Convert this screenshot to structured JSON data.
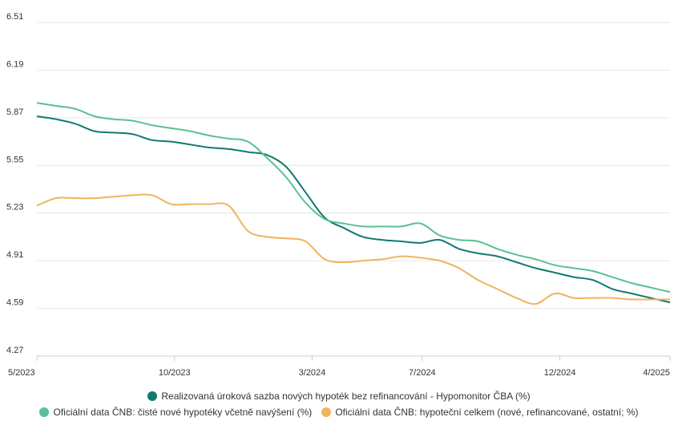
{
  "chart_data": {
    "type": "line",
    "title": "",
    "xlabel": "",
    "ylabel": "",
    "ylim": [
      4.27,
      6.51
    ],
    "y_ticks": [
      "6.51",
      "6.19",
      "5.87",
      "5.55",
      "5.23",
      "4.91",
      "4.59",
      "4.27"
    ],
    "x_ticks": [
      "5/2023",
      "10/2023",
      "3/2024",
      "7/2024",
      "12/2024",
      "4/2025"
    ],
    "grid": true,
    "legend_position": "bottom",
    "x_start": "5/2023",
    "x_end": "4/2025",
    "series": [
      {
        "name": "Realizovaná úroková sazba nových hypoték bez refinancování - Hypomonitor ČBA (%)",
        "color": "#117a6f",
        "values": [
          5.88,
          5.86,
          5.83,
          5.78,
          5.77,
          5.76,
          5.72,
          5.71,
          5.69,
          5.67,
          5.66,
          5.64,
          5.62,
          5.54,
          5.37,
          5.2,
          5.13,
          5.07,
          5.05,
          5.04,
          5.03,
          5.05,
          4.99,
          4.96,
          4.94,
          4.9,
          4.86,
          4.83,
          4.8,
          4.78,
          4.72,
          4.69,
          4.66,
          4.63
        ]
      },
      {
        "name": "Oficiální data ČNB: čisté nové hypotéky včetně navýšení (%)",
        "color": "#5bbf97",
        "values": [
          5.97,
          5.95,
          5.93,
          5.88,
          5.86,
          5.85,
          5.82,
          5.8,
          5.78,
          5.75,
          5.73,
          5.71,
          5.6,
          5.47,
          5.3,
          5.19,
          5.16,
          5.14,
          5.14,
          5.14,
          5.16,
          5.08,
          5.05,
          5.04,
          4.99,
          4.95,
          4.92,
          4.88,
          4.86,
          4.84,
          4.8,
          4.76,
          4.73,
          4.7
        ]
      },
      {
        "name": "Oficiální data ČNB: hypoteční celkem (nové, refinancované, ostatní; %)",
        "color": "#f0b45e",
        "values": [
          5.28,
          5.33,
          5.33,
          5.33,
          5.34,
          5.35,
          5.35,
          5.29,
          5.29,
          5.29,
          5.28,
          5.11,
          5.07,
          5.06,
          5.04,
          4.92,
          4.9,
          4.91,
          4.92,
          4.94,
          4.93,
          4.91,
          4.86,
          4.78,
          4.72,
          4.66,
          4.62,
          4.69,
          4.66,
          4.66,
          4.66,
          4.65,
          4.65,
          4.65
        ]
      }
    ]
  }
}
